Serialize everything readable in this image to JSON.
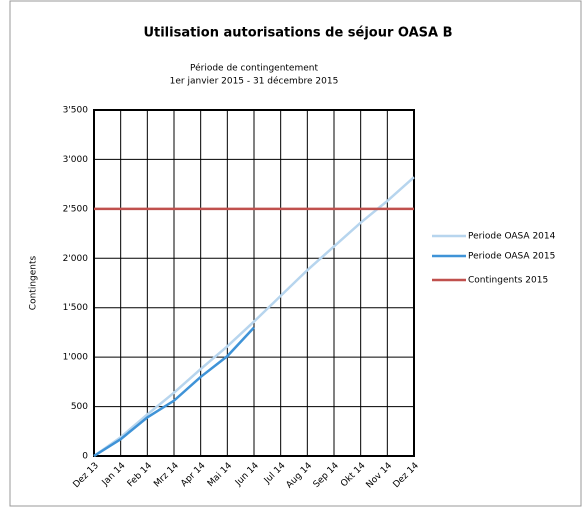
{
  "chart_data": {
    "type": "line",
    "title": "Utilisation autorisations de séjour OASA B",
    "subtitle": [
      "Période de contingentement",
      "1er janvier 2015 - 31 décembre 2015"
    ],
    "y_label": "Contingents",
    "categories": [
      "Dez 13",
      "Jan 14",
      "Feb 14",
      "Mrz 14",
      "Apr 14",
      "Mai 14",
      "Jun 14",
      "Jul 14",
      "Aug 14",
      "Sep 14",
      "Okt 14",
      "Nov 14",
      "Dez 14"
    ],
    "series": [
      {
        "name": "Periode OASA 2014",
        "color": "#b7d5ee",
        "values": [
          0,
          190,
          420,
          640,
          880,
          1110,
          1360,
          1620,
          1880,
          2120,
          2360,
          2580,
          2820
        ]
      },
      {
        "name": "Periode OASA 2015",
        "color": "#3f93d7",
        "values": [
          0,
          170,
          390,
          560,
          800,
          1010,
          1300,
          null,
          null,
          null,
          null,
          null,
          null
        ]
      },
      {
        "name": "Contingents 2015",
        "color": "#c0504d",
        "values": [
          2500,
          2500,
          2500,
          2500,
          2500,
          2500,
          2500,
          2500,
          2500,
          2500,
          2500,
          2500,
          2500
        ]
      }
    ],
    "ylim": [
      0,
      3500
    ],
    "yticks": [
      0,
      500,
      {
        "value": 1000,
        "label": "1'000"
      },
      {
        "value": 1500,
        "label": "1'500"
      },
      {
        "value": 2000,
        "label": "2'000"
      },
      {
        "value": 2500,
        "label": "2'500"
      },
      {
        "value": 3000,
        "label": "3'000"
      },
      {
        "value": 3500,
        "label": "3'500"
      }
    ],
    "grid": true,
    "legend": "right"
  }
}
